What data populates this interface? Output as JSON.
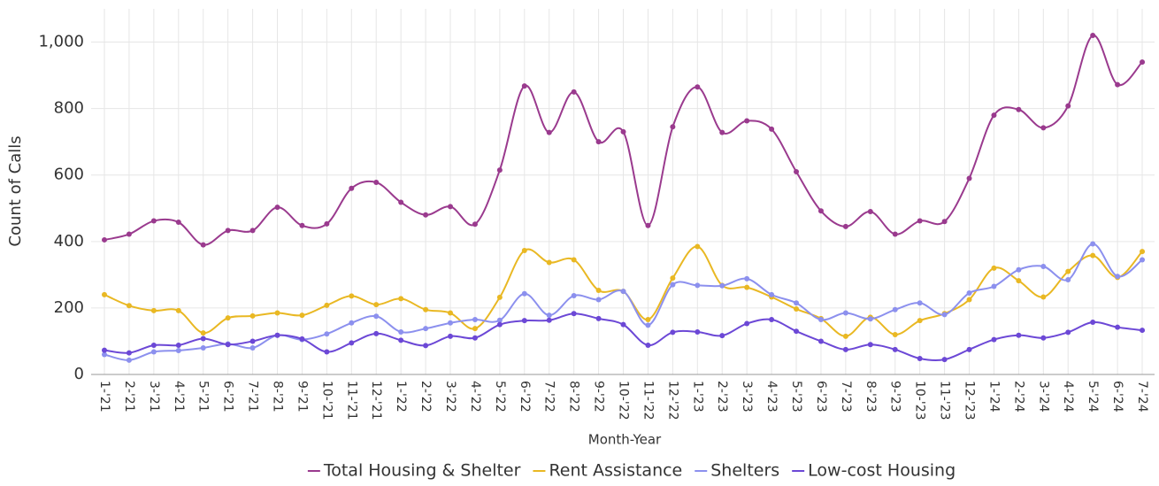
{
  "chart_data": {
    "type": "line",
    "x_label": "Month-Year",
    "y_label": "Count of Calls",
    "categories": [
      "1-'21",
      "2-'21",
      "3-'21",
      "4-'21",
      "5-'21",
      "6-'21",
      "7-'21",
      "8-'21",
      "9-'21",
      "10-'21",
      "11-'21",
      "12-'21",
      "1-'22",
      "2-'22",
      "3-'22",
      "4-'22",
      "5-'22",
      "6-'22",
      "7-'22",
      "8-'22",
      "9-'22",
      "10-'22",
      "11-'22",
      "12-'22",
      "1-'23",
      "2-'23",
      "3-'23",
      "4-'23",
      "5-'23",
      "6-'23",
      "7-'23",
      "8-'23",
      "9-'23",
      "10-'23",
      "11-'23",
      "12-'23",
      "1-'24",
      "2-'24",
      "3-'24",
      "4-'24",
      "5-'24",
      "6-'24",
      "7-'24"
    ],
    "series": [
      {
        "name": "Total Housing & Shelter",
        "color": "#9a3a8e",
        "values": [
          405,
          422,
          462,
          458,
          390,
          433,
          433,
          503,
          448,
          453,
          560,
          578,
          518,
          480,
          505,
          452,
          615,
          868,
          728,
          850,
          700,
          730,
          448,
          745,
          865,
          728,
          763,
          738,
          610,
          492,
          445,
          490,
          422,
          462,
          460,
          590,
          780,
          797,
          742,
          808,
          1020,
          872,
          940
        ]
      },
      {
        "name": "Rent Assistance",
        "color": "#e9b823",
        "values": [
          240,
          207,
          192,
          192,
          125,
          170,
          176,
          185,
          178,
          208,
          236,
          210,
          228,
          195,
          185,
          138,
          232,
          373,
          337,
          345,
          253,
          250,
          165,
          290,
          385,
          268,
          262,
          233,
          197,
          168,
          115,
          172,
          120,
          162,
          183,
          225,
          320,
          282,
          233,
          310,
          358,
          292,
          370
        ]
      },
      {
        "name": "Shelters",
        "color": "#8c90ee",
        "values": [
          60,
          43,
          68,
          72,
          80,
          92,
          80,
          118,
          105,
          122,
          155,
          175,
          128,
          138,
          155,
          165,
          163,
          243,
          178,
          237,
          225,
          250,
          148,
          270,
          268,
          267,
          288,
          240,
          215,
          165,
          185,
          167,
          195,
          215,
          180,
          245,
          265,
          315,
          325,
          285,
          393,
          295,
          345
        ]
      },
      {
        "name": "Low-cost Housing",
        "color": "#6c48d6",
        "values": [
          73,
          65,
          88,
          88,
          108,
          90,
          100,
          118,
          107,
          68,
          95,
          123,
          103,
          87,
          115,
          110,
          150,
          162,
          163,
          183,
          168,
          150,
          88,
          127,
          128,
          117,
          153,
          165,
          130,
          100,
          75,
          90,
          75,
          48,
          45,
          75,
          105,
          118,
          110,
          127,
          157,
          142,
          133
        ]
      }
    ],
    "ylim": [
      0,
      1100
    ],
    "yticks": [
      0,
      200,
      400,
      600,
      800,
      {
        "value": 1000,
        "label": "1,000"
      }
    ],
    "grid": true,
    "legend": "bottom"
  }
}
